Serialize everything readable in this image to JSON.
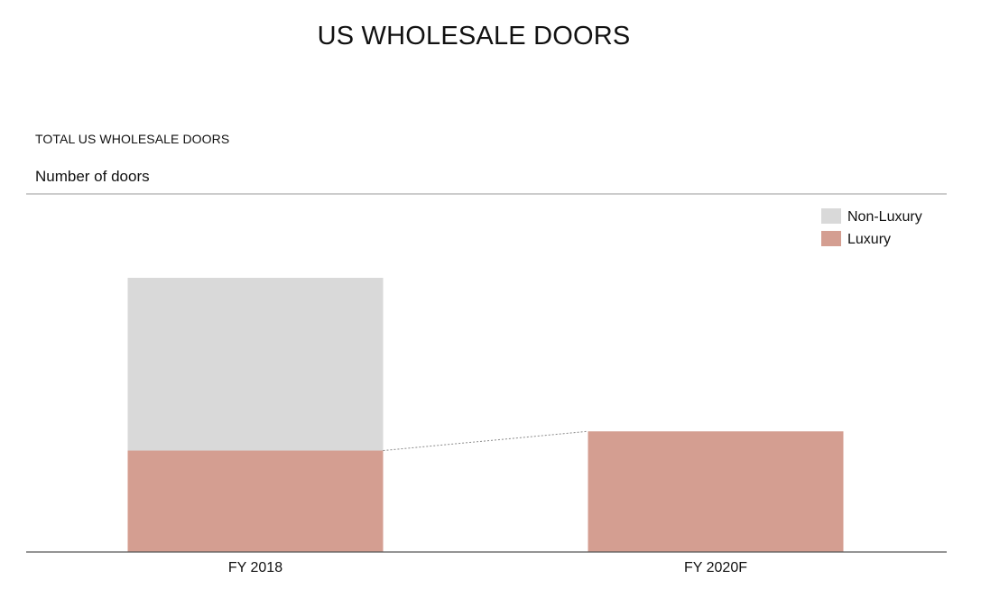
{
  "header": {
    "title": "US WHOLESALE DOORS",
    "section_label": "TOTAL US WHOLESALE DOORS",
    "metric_label": "Number of doors"
  },
  "colors": {
    "non_luxury": "#d9d9d9",
    "luxury": "#d49e91",
    "axis": "#555555",
    "rule": "#9a9a9a",
    "connector": "#8a8a8a"
  },
  "chart_data": {
    "type": "bar",
    "stacked": true,
    "title": "US WHOLESALE DOORS",
    "subtitle": "TOTAL US WHOLESALE DOORS",
    "ylabel": "Number of doors",
    "categories": [
      "FY 2018",
      "FY 2020F"
    ],
    "series": [
      {
        "name": "Luxury",
        "values": [
          37,
          44
        ],
        "color": "#d49e91"
      },
      {
        "name": "Non-Luxury",
        "values": [
          63,
          0
        ],
        "color": "#d9d9d9"
      }
    ],
    "ylim": [
      0,
      100
    ],
    "grid": false,
    "legend": {
      "position": "top-right",
      "entries": [
        "Non-Luxury",
        "Luxury"
      ]
    },
    "connector_line": "dotted line from top of FY 2018 Luxury to top of FY 2020F Luxury"
  }
}
